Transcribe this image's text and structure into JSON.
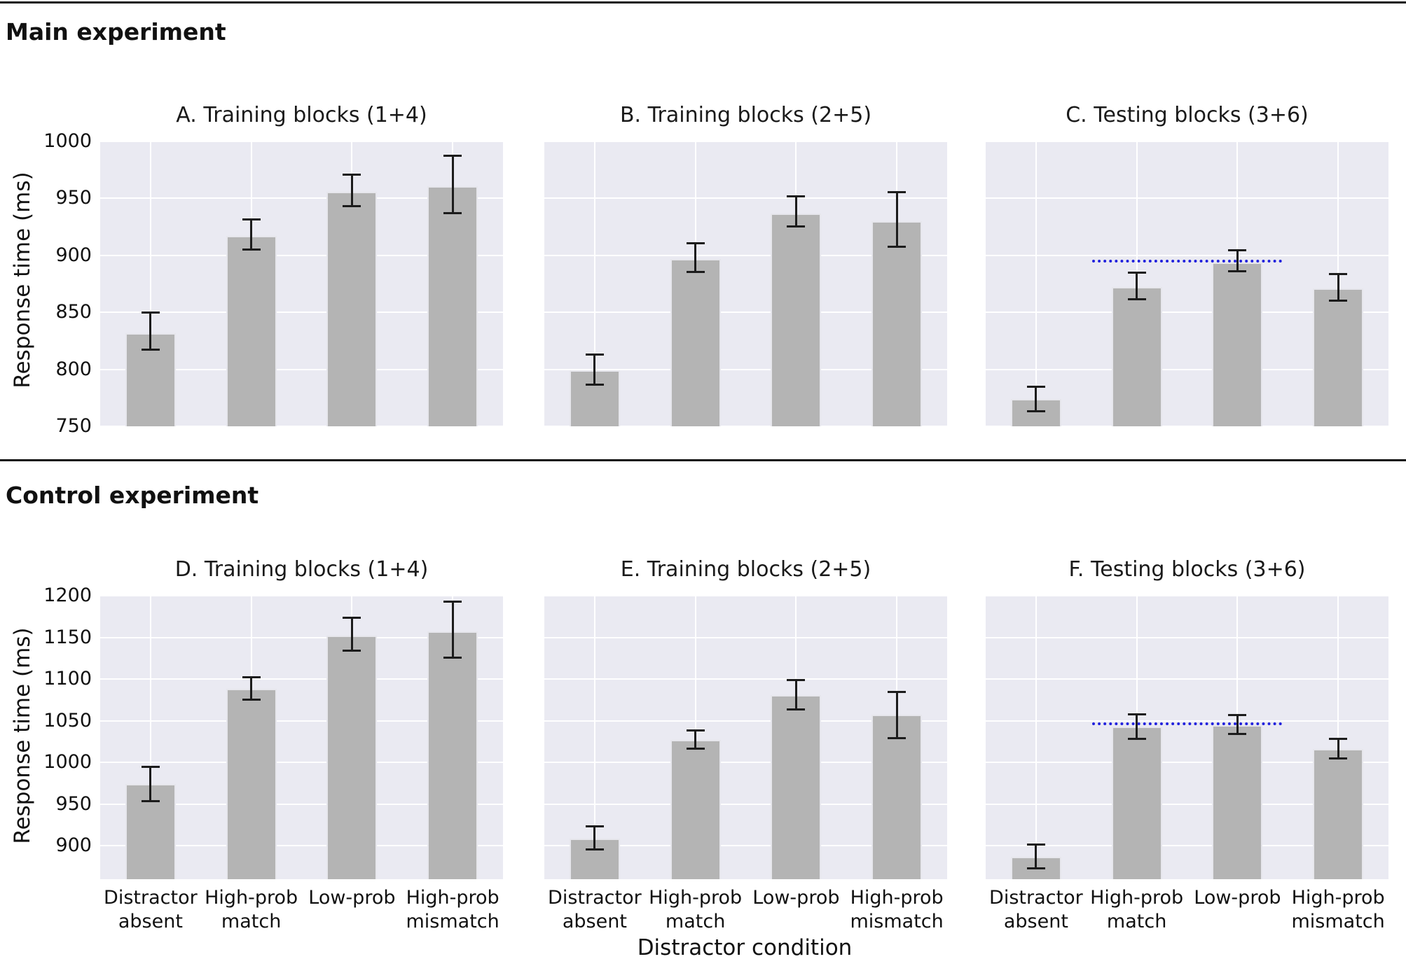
{
  "figure": {
    "row_headings": {
      "main": "Main experiment",
      "control": "Control experiment"
    },
    "ylabel": "Response time (ms)",
    "xlabel": "Distractor condition"
  },
  "colors": {
    "axes_background": "#eaeaf2",
    "gridline": "#ffffff",
    "bar_fill": "#b4b4b4",
    "bar_edge": "#e6e6ec",
    "error_bar": "#1c1c1c",
    "reference_line": "#2222dd",
    "text": "#111111",
    "separator": "#111111"
  },
  "chart_data": [
    {
      "panel": "A",
      "title": "A. Training blocks (1+4)",
      "type": "bar",
      "experiment": "Main experiment",
      "categories": [
        "Distractor\nabsent",
        "High-prob\nmatch",
        "Low-prob",
        "High-prob\nmismatch"
      ],
      "values": [
        832,
        917,
        956,
        961
      ],
      "error_low": [
        817,
        905,
        943,
        937
      ],
      "error_high": [
        850,
        932,
        971,
        988
      ],
      "ylim": [
        750,
        1000
      ],
      "yticks": [
        750,
        800,
        850,
        900,
        950,
        1000
      ],
      "show_ytick_labels": true,
      "show_xtick_labels": false,
      "grid": true,
      "legend": null,
      "ref_line": null
    },
    {
      "panel": "B",
      "title": "B. Training blocks (2+5)",
      "type": "bar",
      "experiment": "Main experiment",
      "categories": [
        "Distractor\nabsent",
        "High-prob\nmatch",
        "Low-prob",
        "High-prob\nmismatch"
      ],
      "values": [
        799,
        897,
        937,
        930
      ],
      "error_low": [
        786,
        885,
        925,
        907
      ],
      "error_high": [
        813,
        911,
        952,
        956
      ],
      "ylim": [
        750,
        1000
      ],
      "yticks": [
        750,
        800,
        850,
        900,
        950,
        1000
      ],
      "show_ytick_labels": false,
      "show_xtick_labels": false,
      "grid": true,
      "legend": null,
      "ref_line": null
    },
    {
      "panel": "C",
      "title": "C. Testing blocks (3+6)",
      "type": "bar",
      "experiment": "Main experiment",
      "categories": [
        "Distractor\nabsent",
        "High-prob\nmatch",
        "Low-prob",
        "High-prob\nmismatch"
      ],
      "values": [
        774,
        872,
        894,
        871
      ],
      "error_low": [
        763,
        861,
        886,
        860
      ],
      "error_high": [
        785,
        885,
        905,
        884
      ],
      "ylim": [
        750,
        1000
      ],
      "yticks": [
        750,
        800,
        850,
        900,
        950,
        1000
      ],
      "show_ytick_labels": false,
      "show_xtick_labels": false,
      "grid": true,
      "legend": null,
      "ref_line": {
        "value": 895,
        "from_category_index": 1,
        "to_category_index": 2,
        "style": "dotted",
        "color": "#2222dd"
      }
    },
    {
      "panel": "D",
      "title": "D. Training blocks (1+4)",
      "type": "bar",
      "experiment": "Control experiment",
      "categories": [
        "Distractor\nabsent",
        "High-prob\nmatch",
        "Low-prob",
        "High-prob\nmismatch"
      ],
      "values": [
        974,
        1088,
        1152,
        1157
      ],
      "error_low": [
        953,
        1075,
        1134,
        1125
      ],
      "error_high": [
        995,
        1103,
        1174,
        1193
      ],
      "ylim": [
        860,
        1200
      ],
      "yticks": [
        900,
        950,
        1000,
        1050,
        1100,
        1150,
        1200
      ],
      "show_ytick_labels": true,
      "show_xtick_labels": true,
      "grid": true,
      "legend": null,
      "ref_line": null
    },
    {
      "panel": "E",
      "title": "E. Training blocks (2+5)",
      "type": "bar",
      "experiment": "Control experiment",
      "categories": [
        "Distractor\nabsent",
        "High-prob\nmatch",
        "Low-prob",
        "High-prob\nmismatch"
      ],
      "values": [
        909,
        1027,
        1081,
        1057
      ],
      "error_low": [
        895,
        1016,
        1063,
        1029
      ],
      "error_high": [
        924,
        1039,
        1099,
        1085
      ],
      "ylim": [
        860,
        1200
      ],
      "yticks": [
        900,
        950,
        1000,
        1050,
        1100,
        1150,
        1200
      ],
      "show_ytick_labels": false,
      "show_xtick_labels": true,
      "grid": true,
      "legend": null,
      "ref_line": null
    },
    {
      "panel": "F",
      "title": "F. Testing blocks (3+6)",
      "type": "bar",
      "experiment": "Control experiment",
      "categories": [
        "Distractor\nabsent",
        "High-prob\nmatch",
        "Low-prob",
        "High-prob\nmismatch"
      ],
      "values": [
        887,
        1043,
        1045,
        1016
      ],
      "error_low": [
        873,
        1028,
        1034,
        1004
      ],
      "error_high": [
        902,
        1058,
        1057,
        1029
      ],
      "ylim": [
        860,
        1200
      ],
      "yticks": [
        900,
        950,
        1000,
        1050,
        1100,
        1150,
        1200
      ],
      "show_ytick_labels": false,
      "show_xtick_labels": true,
      "grid": true,
      "legend": null,
      "ref_line": {
        "value": 1046,
        "from_category_index": 1,
        "to_category_index": 2,
        "style": "dotted",
        "color": "#2222dd"
      }
    }
  ]
}
